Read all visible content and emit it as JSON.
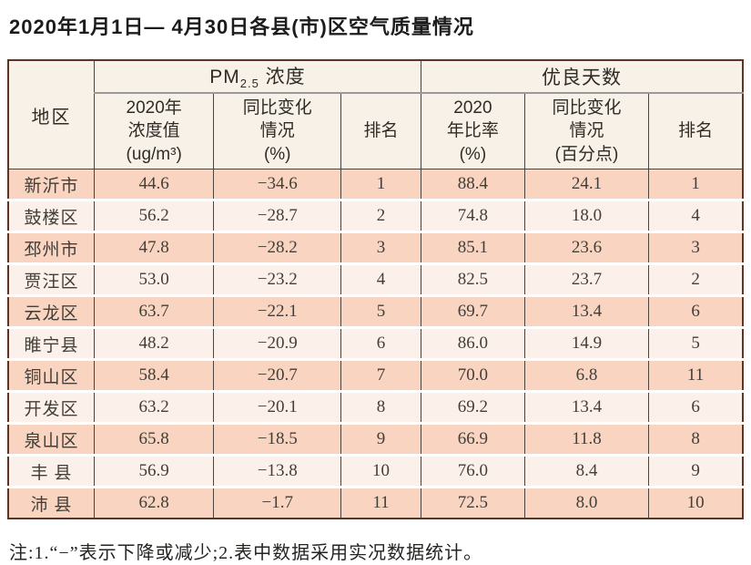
{
  "title": "2020年1月1日— 4月30日各县(市)区空气质量情况",
  "table": {
    "region_header": "地区",
    "group1": {
      "prefix": "PM",
      "sub": "2.5",
      "suffix": " 浓度"
    },
    "group2": "优良天数",
    "columns": {
      "pm_value": "2020年\n浓度值\n(ug/m³)",
      "pm_change": "同比变化\n情况\n(%)",
      "pm_rank": "排名",
      "days_rate": "2020\n年比率\n(%)",
      "days_change": "同比变化\n情况\n(百分点)",
      "days_rank": "排名"
    },
    "rows": [
      [
        "新沂市",
        "44.6",
        "−34.6",
        "1",
        "88.4",
        "24.1",
        "1"
      ],
      [
        "鼓楼区",
        "56.2",
        "−28.7",
        "2",
        "74.8",
        "18.0",
        "4"
      ],
      [
        "邳州市",
        "47.8",
        "−28.2",
        "3",
        "85.1",
        "23.6",
        "3"
      ],
      [
        "贾汪区",
        "53.0",
        "−23.2",
        "4",
        "82.5",
        "23.7",
        "2"
      ],
      [
        "云龙区",
        "63.7",
        "−22.1",
        "5",
        "69.7",
        "13.4",
        "6"
      ],
      [
        "睢宁县",
        "48.2",
        "−20.9",
        "6",
        "86.0",
        "14.9",
        "5"
      ],
      [
        "铜山区",
        "58.4",
        "−20.7",
        "7",
        "70.0",
        "6.8",
        "11"
      ],
      [
        "开发区",
        "63.2",
        "−20.1",
        "8",
        "69.2",
        "13.4",
        "6"
      ],
      [
        "泉山区",
        "65.8",
        "−18.5",
        "9",
        "66.9",
        "11.8",
        "8"
      ],
      [
        "丰 县",
        "56.9",
        "−13.8",
        "10",
        "76.0",
        "8.4",
        "9"
      ],
      [
        "沛 县",
        "62.8",
        "−1.7",
        "11",
        "72.5",
        "8.0",
        "10"
      ]
    ]
  },
  "note": "注:1.“−”表示下降或减少;2.表中数据采用实况数据统计。",
  "colors": {
    "row_dark": "#f8d4c1",
    "row_light": "#fcf1ea",
    "header_bg": "#f8f1e7",
    "outer_border": "#5e3426",
    "inner_border": "#4c443c",
    "header_divider": "#9a9a9a"
  }
}
